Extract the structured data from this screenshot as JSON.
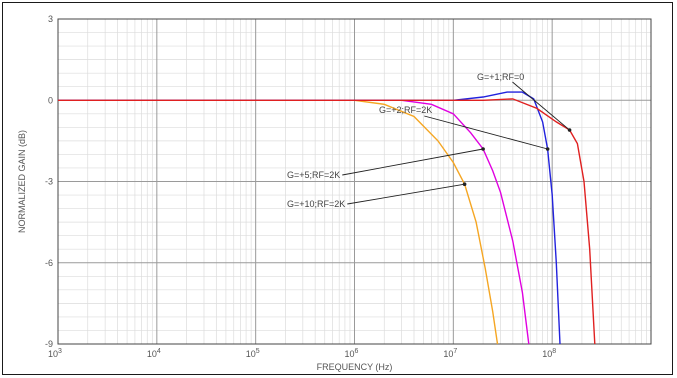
{
  "chart_data": {
    "type": "line",
    "xscale": "log",
    "xlim": [
      1000,
      1000000000
    ],
    "ylim": [
      -9,
      3
    ],
    "xlabel": "FREQUENCY (Hz)",
    "ylabel": "NORMALIZED GAIN (dB)",
    "x_ticks": [
      {
        "value": 1000,
        "base": "10",
        "exp": "3"
      },
      {
        "value": 10000,
        "base": "10",
        "exp": "4"
      },
      {
        "value": 100000,
        "base": "10",
        "exp": "5"
      },
      {
        "value": 1000000,
        "base": "10",
        "exp": "6"
      },
      {
        "value": 10000000,
        "base": "10",
        "exp": "7"
      },
      {
        "value": 100000000,
        "base": "10",
        "exp": "8"
      }
    ],
    "y_ticks": [
      {
        "value": 3,
        "label": "3"
      },
      {
        "value": 0,
        "label": "0"
      },
      {
        "value": -3,
        "label": "-3"
      },
      {
        "value": -6,
        "label": "-6"
      },
      {
        "value": -9,
        "label": "-9"
      }
    ],
    "grid": true,
    "series": [
      {
        "name": "G=+10;RF=2K",
        "color": "#f5a623",
        "points": [
          [
            1000,
            0
          ],
          [
            1000000,
            0
          ],
          [
            2000000,
            -0.15
          ],
          [
            4000000,
            -0.6
          ],
          [
            7000000,
            -1.5
          ],
          [
            10000000,
            -2.3
          ],
          [
            13000000,
            -3.1
          ],
          [
            17000000,
            -4.5
          ],
          [
            21000000,
            -6.2
          ],
          [
            25000000,
            -7.8
          ],
          [
            28000000,
            -9
          ]
        ]
      },
      {
        "name": "G=+5;RF=2K",
        "color": "#e000e0",
        "points": [
          [
            1000,
            0
          ],
          [
            3000000,
            0
          ],
          [
            6000000,
            -0.15
          ],
          [
            10000000,
            -0.5
          ],
          [
            15000000,
            -1.2
          ],
          [
            20000000,
            -1.8
          ],
          [
            25000000,
            -2.6
          ],
          [
            30000000,
            -3.4
          ],
          [
            40000000,
            -5.2
          ],
          [
            50000000,
            -7.1
          ],
          [
            58000000,
            -9
          ]
        ]
      },
      {
        "name": "G=+2;RF=2K",
        "color": "#2222dd",
        "points": [
          [
            1000,
            0
          ],
          [
            10000000,
            0
          ],
          [
            20000000,
            0.12
          ],
          [
            35000000,
            0.3
          ],
          [
            50000000,
            0.3
          ],
          [
            65000000,
            0.05
          ],
          [
            80000000,
            -0.8
          ],
          [
            90000000,
            -1.8
          ],
          [
            100000000,
            -3.5
          ],
          [
            110000000,
            -6
          ],
          [
            120000000,
            -9
          ]
        ]
      },
      {
        "name": "G=+1;RF=0",
        "color": "#e02020",
        "points": [
          [
            1000,
            0
          ],
          [
            20000000,
            0
          ],
          [
            40000000,
            0.05
          ],
          [
            70000000,
            -0.3
          ],
          [
            110000000,
            -0.8
          ],
          [
            150000000,
            -1.1
          ],
          [
            180000000,
            -1.6
          ],
          [
            210000000,
            -3
          ],
          [
            240000000,
            -5.5
          ],
          [
            270000000,
            -9
          ]
        ]
      }
    ],
    "annotations": [
      {
        "text": "G=+1;RF=0",
        "series": 3,
        "at": [
          150000000,
          -1.1
        ]
      },
      {
        "text": "G=+2;RF=2K",
        "series": 2,
        "at": [
          90000000,
          -1.8
        ]
      },
      {
        "text": "G=+5;RF=2K",
        "series": 1,
        "at": [
          20000000,
          -1.8
        ]
      },
      {
        "text": "G=+10;RF=2K",
        "series": 0,
        "at": [
          13000000,
          -3.1
        ]
      }
    ]
  }
}
